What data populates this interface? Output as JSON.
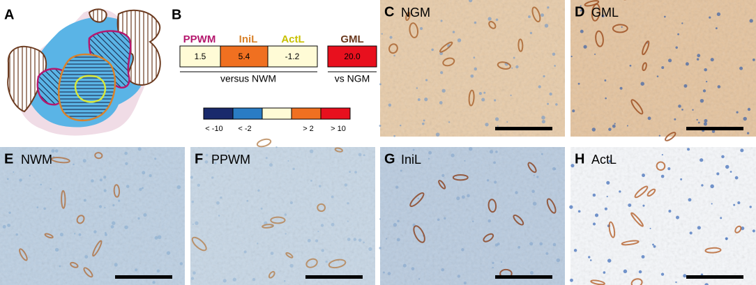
{
  "panel_a": {
    "letter": "A"
  },
  "panel_b": {
    "letter": "B",
    "columns": [
      "PPWM",
      "IniL",
      "ActL",
      "GML"
    ],
    "values": [
      "1.5",
      "5.4",
      "-1.2",
      "20.0"
    ],
    "group_labels": [
      "versus NWM",
      "vs NGM"
    ],
    "scale_labels": [
      "< -10",
      "< -2",
      "> 2",
      "> 10"
    ]
  },
  "micrographs": [
    {
      "letter": "C",
      "label": "NGM"
    },
    {
      "letter": "D",
      "label": "GML"
    },
    {
      "letter": "E",
      "label": "NWM"
    },
    {
      "letter": "F",
      "label": "PPWM"
    },
    {
      "letter": "G",
      "label": "IniL"
    },
    {
      "letter": "H",
      "label": "ActL"
    }
  ]
}
